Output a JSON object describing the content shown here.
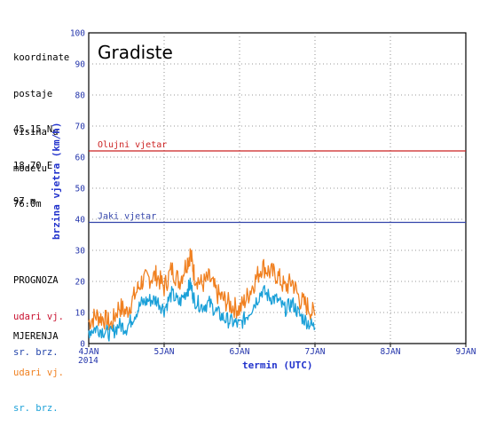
{
  "info": {
    "label_coords": "koordinate",
    "label_station": "postaje",
    "lat": "45.15 N",
    "lon": "18.70 E",
    "elev": "97.m",
    "label_model_h1": "visina u",
    "label_model_h2": "modelu",
    "model_elev": "76.0m"
  },
  "legend": {
    "forecast_title": "PROGNOZA",
    "forecast_gust": "udari vj.",
    "forecast_mean": "sr. brz.",
    "measured_title": "MJERENJA",
    "measured_gust": "udari vj.",
    "measured_mean": "sr. brz."
  },
  "colors": {
    "forecast_gust": "#c8102e",
    "forecast_mean": "#2244aa",
    "measured_gust": "#f08020",
    "measured_mean": "#1aa0d8",
    "storm_line": "#cc2222",
    "strong_line": "#3344aa",
    "axis_text": "#2233aa"
  },
  "chart_data": {
    "type": "line",
    "title": "Gradiste",
    "xlabel": "termin (UTC)",
    "ylabel": "brzina vjetra (km/h)",
    "ylim": [
      0,
      100
    ],
    "yticks": [
      "0",
      "10",
      "20",
      "30",
      "40",
      "50",
      "60",
      "70",
      "80",
      "90",
      "100"
    ],
    "xticks": [
      "4JAN",
      "5JAN",
      "6JAN",
      "7JAN",
      "8JAN",
      "9JAN"
    ],
    "year_label": "2014",
    "xlim_days": [
      4,
      9
    ],
    "grid": true,
    "thresholds": [
      {
        "name": "Olujni vjetar",
        "value": 62
      },
      {
        "name": "Jaki vjetar",
        "value": 39
      }
    ],
    "series": [
      {
        "name": "udari vj.",
        "x_days": [
          4.0,
          4.1,
          4.2,
          4.3,
          4.4,
          4.5,
          4.6,
          4.7,
          4.8,
          4.9,
          5.0,
          5.1,
          5.2,
          5.3,
          5.35,
          5.4,
          5.5,
          5.6,
          5.7,
          5.8,
          5.9,
          6.0,
          6.1,
          6.2,
          6.3,
          6.4,
          6.5,
          6.6,
          6.7,
          6.8,
          6.9,
          7.0
        ],
        "values": [
          7,
          9,
          8,
          6,
          12,
          10,
          15,
          20,
          21,
          22,
          18,
          24,
          20,
          26,
          29,
          22,
          19,
          21,
          16,
          14,
          12,
          11,
          15,
          20,
          25,
          23,
          22,
          18,
          20,
          14,
          12,
          9
        ]
      },
      {
        "name": "sr. brz.",
        "x_days": [
          4.0,
          4.1,
          4.2,
          4.3,
          4.4,
          4.5,
          4.6,
          4.7,
          4.8,
          4.9,
          5.0,
          5.1,
          5.2,
          5.3,
          5.35,
          5.4,
          5.5,
          5.6,
          5.7,
          5.8,
          5.9,
          6.0,
          6.1,
          6.2,
          6.3,
          6.4,
          6.5,
          6.6,
          6.7,
          6.8,
          6.9,
          7.0
        ],
        "values": [
          4,
          5,
          4,
          3,
          6,
          5,
          9,
          13,
          14,
          14,
          11,
          16,
          13,
          17,
          19,
          14,
          12,
          13,
          10,
          8,
          7,
          6,
          9,
          13,
          17,
          15,
          14,
          11,
          13,
          9,
          7,
          5
        ]
      }
    ]
  }
}
